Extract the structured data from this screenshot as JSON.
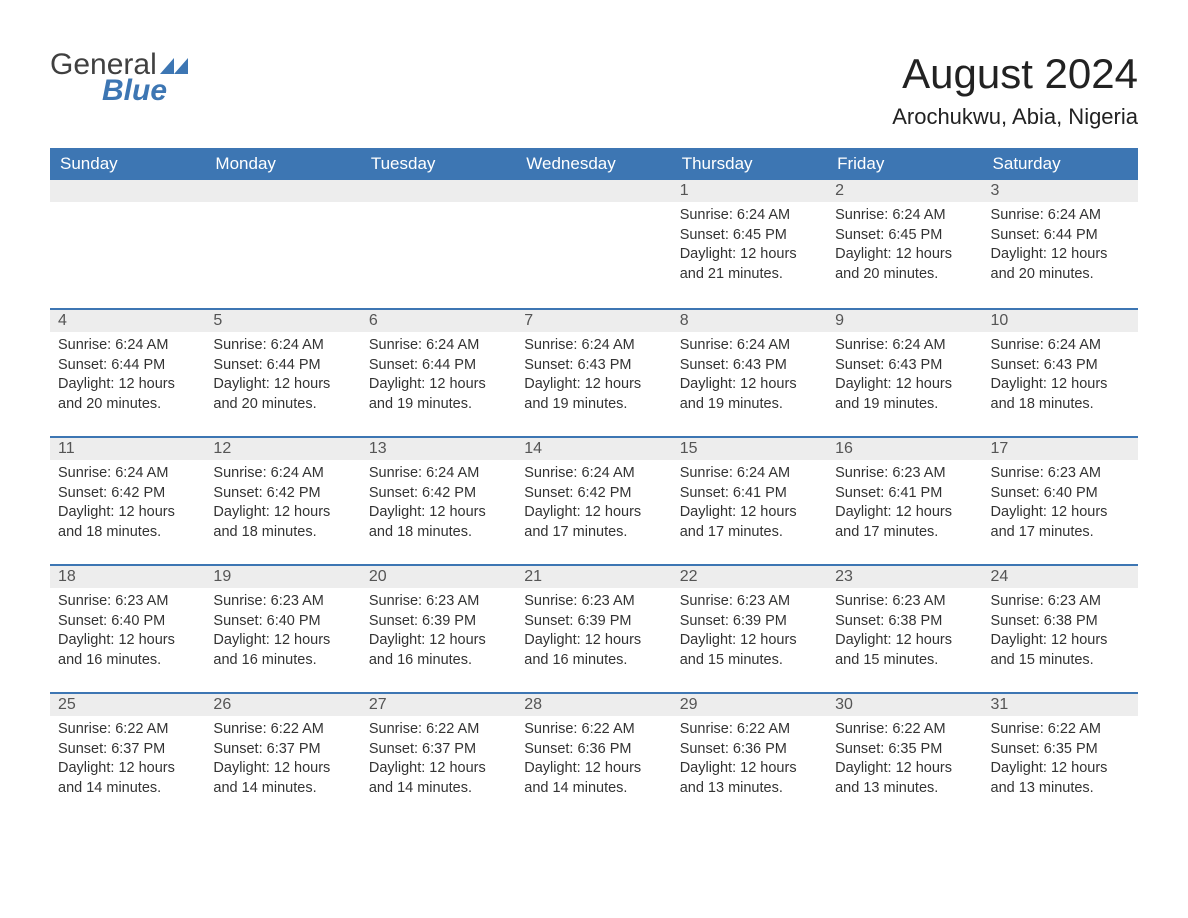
{
  "logo": {
    "line1": "General",
    "line2": "Blue"
  },
  "title": "August 2024",
  "location": "Arochukwu, Abia, Nigeria",
  "colors": {
    "header_bg": "#3d76b3",
    "header_text": "#ffffff",
    "daynum_bg": "#ededed",
    "daynum_text": "#555555",
    "body_text": "#333333",
    "rule": "#3d76b3",
    "page_bg": "#ffffff"
  },
  "layout": {
    "columns": 7,
    "rows": 5,
    "leading_blanks": 4,
    "font_family": "Arial",
    "title_fontsize": 42,
    "subtitle_fontsize": 22,
    "header_fontsize": 17,
    "cell_fontsize": 14.5
  },
  "weekdays": [
    "Sunday",
    "Monday",
    "Tuesday",
    "Wednesday",
    "Thursday",
    "Friday",
    "Saturday"
  ],
  "days": [
    {
      "n": 1,
      "sunrise": "6:24 AM",
      "sunset": "6:45 PM",
      "daylight": "12 hours and 21 minutes."
    },
    {
      "n": 2,
      "sunrise": "6:24 AM",
      "sunset": "6:45 PM",
      "daylight": "12 hours and 20 minutes."
    },
    {
      "n": 3,
      "sunrise": "6:24 AM",
      "sunset": "6:44 PM",
      "daylight": "12 hours and 20 minutes."
    },
    {
      "n": 4,
      "sunrise": "6:24 AM",
      "sunset": "6:44 PM",
      "daylight": "12 hours and 20 minutes."
    },
    {
      "n": 5,
      "sunrise": "6:24 AM",
      "sunset": "6:44 PM",
      "daylight": "12 hours and 20 minutes."
    },
    {
      "n": 6,
      "sunrise": "6:24 AM",
      "sunset": "6:44 PM",
      "daylight": "12 hours and 19 minutes."
    },
    {
      "n": 7,
      "sunrise": "6:24 AM",
      "sunset": "6:43 PM",
      "daylight": "12 hours and 19 minutes."
    },
    {
      "n": 8,
      "sunrise": "6:24 AM",
      "sunset": "6:43 PM",
      "daylight": "12 hours and 19 minutes."
    },
    {
      "n": 9,
      "sunrise": "6:24 AM",
      "sunset": "6:43 PM",
      "daylight": "12 hours and 19 minutes."
    },
    {
      "n": 10,
      "sunrise": "6:24 AM",
      "sunset": "6:43 PM",
      "daylight": "12 hours and 18 minutes."
    },
    {
      "n": 11,
      "sunrise": "6:24 AM",
      "sunset": "6:42 PM",
      "daylight": "12 hours and 18 minutes."
    },
    {
      "n": 12,
      "sunrise": "6:24 AM",
      "sunset": "6:42 PM",
      "daylight": "12 hours and 18 minutes."
    },
    {
      "n": 13,
      "sunrise": "6:24 AM",
      "sunset": "6:42 PM",
      "daylight": "12 hours and 18 minutes."
    },
    {
      "n": 14,
      "sunrise": "6:24 AM",
      "sunset": "6:42 PM",
      "daylight": "12 hours and 17 minutes."
    },
    {
      "n": 15,
      "sunrise": "6:24 AM",
      "sunset": "6:41 PM",
      "daylight": "12 hours and 17 minutes."
    },
    {
      "n": 16,
      "sunrise": "6:23 AM",
      "sunset": "6:41 PM",
      "daylight": "12 hours and 17 minutes."
    },
    {
      "n": 17,
      "sunrise": "6:23 AM",
      "sunset": "6:40 PM",
      "daylight": "12 hours and 17 minutes."
    },
    {
      "n": 18,
      "sunrise": "6:23 AM",
      "sunset": "6:40 PM",
      "daylight": "12 hours and 16 minutes."
    },
    {
      "n": 19,
      "sunrise": "6:23 AM",
      "sunset": "6:40 PM",
      "daylight": "12 hours and 16 minutes."
    },
    {
      "n": 20,
      "sunrise": "6:23 AM",
      "sunset": "6:39 PM",
      "daylight": "12 hours and 16 minutes."
    },
    {
      "n": 21,
      "sunrise": "6:23 AM",
      "sunset": "6:39 PM",
      "daylight": "12 hours and 16 minutes."
    },
    {
      "n": 22,
      "sunrise": "6:23 AM",
      "sunset": "6:39 PM",
      "daylight": "12 hours and 15 minutes."
    },
    {
      "n": 23,
      "sunrise": "6:23 AM",
      "sunset": "6:38 PM",
      "daylight": "12 hours and 15 minutes."
    },
    {
      "n": 24,
      "sunrise": "6:23 AM",
      "sunset": "6:38 PM",
      "daylight": "12 hours and 15 minutes."
    },
    {
      "n": 25,
      "sunrise": "6:22 AM",
      "sunset": "6:37 PM",
      "daylight": "12 hours and 14 minutes."
    },
    {
      "n": 26,
      "sunrise": "6:22 AM",
      "sunset": "6:37 PM",
      "daylight": "12 hours and 14 minutes."
    },
    {
      "n": 27,
      "sunrise": "6:22 AM",
      "sunset": "6:37 PM",
      "daylight": "12 hours and 14 minutes."
    },
    {
      "n": 28,
      "sunrise": "6:22 AM",
      "sunset": "6:36 PM",
      "daylight": "12 hours and 14 minutes."
    },
    {
      "n": 29,
      "sunrise": "6:22 AM",
      "sunset": "6:36 PM",
      "daylight": "12 hours and 13 minutes."
    },
    {
      "n": 30,
      "sunrise": "6:22 AM",
      "sunset": "6:35 PM",
      "daylight": "12 hours and 13 minutes."
    },
    {
      "n": 31,
      "sunrise": "6:22 AM",
      "sunset": "6:35 PM",
      "daylight": "12 hours and 13 minutes."
    }
  ],
  "labels": {
    "sunrise": "Sunrise: ",
    "sunset": "Sunset: ",
    "daylight": "Daylight: "
  }
}
